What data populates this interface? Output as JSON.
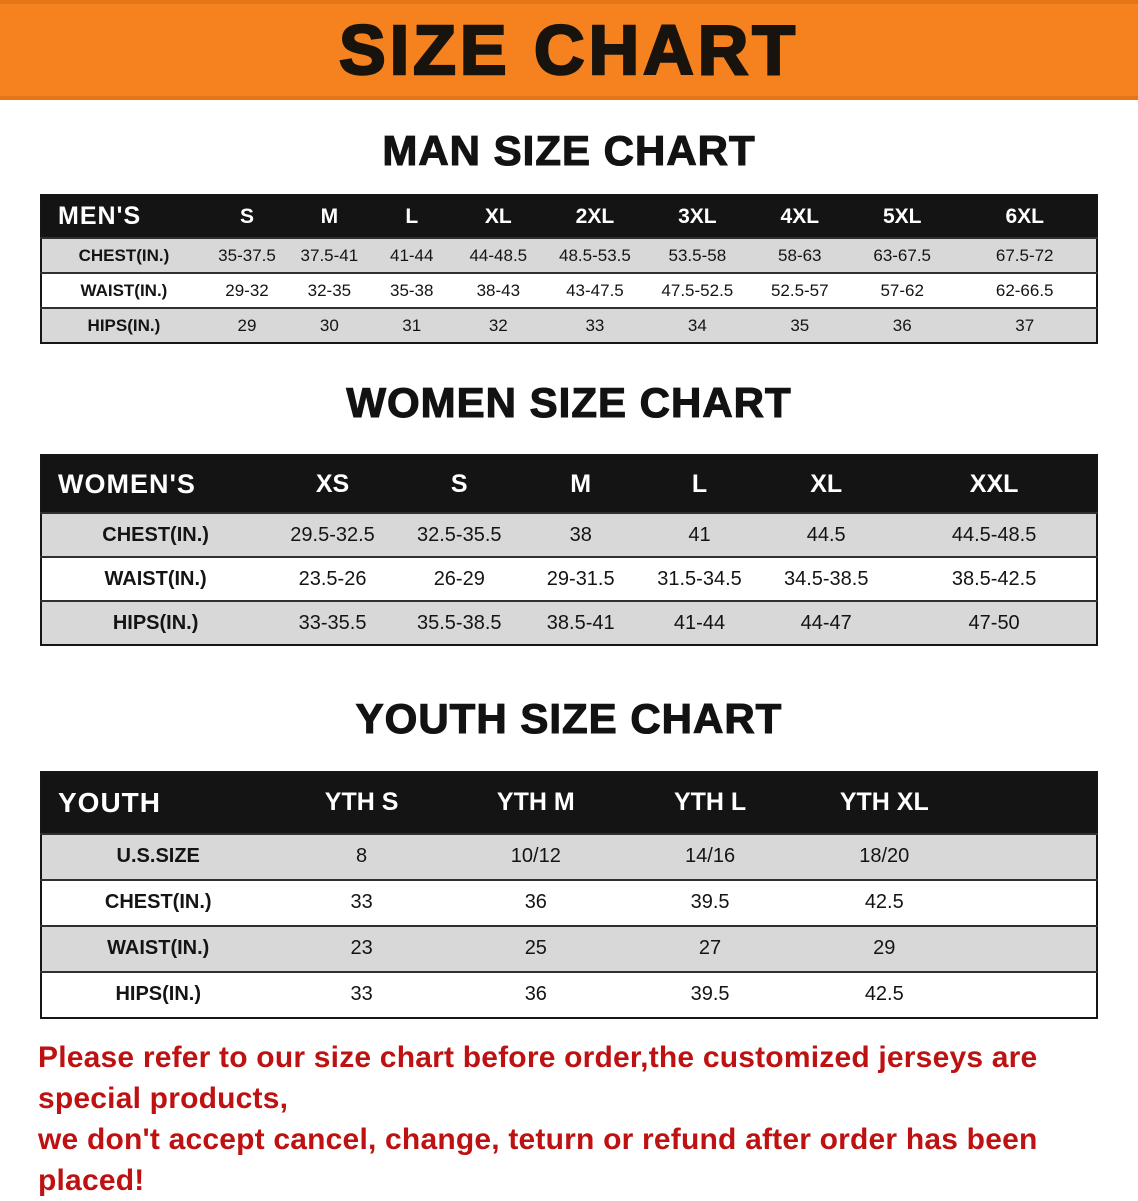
{
  "banner": {
    "title": "SIZE CHART"
  },
  "sections": [
    {
      "heading": "MAN SIZE CHART",
      "table": {
        "header": [
          "MEN'S",
          "S",
          "M",
          "L",
          "XL",
          "2XL",
          "3XL",
          "4XL",
          "5XL",
          "6XL"
        ],
        "rows": [
          {
            "label": "CHEST(IN.)",
            "values": [
              "35-37.5",
              "37.5-41",
              "41-44",
              "44-48.5",
              "48.5-53.5",
              "53.5-58",
              "58-63",
              "63-67.5",
              "67.5-72"
            ]
          },
          {
            "label": "WAIST(IN.)",
            "values": [
              "29-32",
              "32-35",
              "35-38",
              "38-43",
              "43-47.5",
              "47.5-52.5",
              "52.5-57",
              "57-62",
              "62-66.5"
            ]
          },
          {
            "label": "HIPS(IN.)",
            "values": [
              "29",
              "30",
              "31",
              "32",
              "33",
              "34",
              "35",
              "36",
              "37"
            ]
          }
        ]
      }
    },
    {
      "heading": "WOMEN SIZE CHART",
      "table": {
        "header": [
          "WOMEN'S",
          "XS",
          "S",
          "M",
          "L",
          "XL",
          "XXL"
        ],
        "rows": [
          {
            "label": "CHEST(IN.)",
            "values": [
              "29.5-32.5",
              "32.5-35.5",
              "38",
              "41",
              "44.5",
              "44.5-48.5"
            ]
          },
          {
            "label": "WAIST(IN.)",
            "values": [
              "23.5-26",
              "26-29",
              "29-31.5",
              "31.5-34.5",
              "34.5-38.5",
              "38.5-42.5"
            ]
          },
          {
            "label": "HIPS(IN.)",
            "values": [
              "33-35.5",
              "35.5-38.5",
              "38.5-41",
              "41-44",
              "44-47",
              "47-50"
            ]
          }
        ]
      }
    },
    {
      "heading": "YOUTH SIZE CHART",
      "table": {
        "header": [
          "YOUTH",
          "YTH S",
          "YTH M",
          "YTH L",
          "YTH XL"
        ],
        "rows": [
          {
            "label": "U.S.SIZE",
            "values": [
              "8",
              "10/12",
              "14/16",
              "18/20"
            ]
          },
          {
            "label": "CHEST(IN.)",
            "values": [
              "33",
              "36",
              "39.5",
              "42.5"
            ]
          },
          {
            "label": "WAIST(IN.)",
            "values": [
              "23",
              "25",
              "27",
              "29"
            ]
          },
          {
            "label": "HIPS(IN.)",
            "values": [
              "33",
              "36",
              "39.5",
              "42.5"
            ]
          }
        ]
      }
    }
  ],
  "disclaimer": {
    "line1": "Please refer to our size chart before order,the customized jerseys are special products,",
    "line2": "we don't accept cancel, change, teturn or refund after order has been placed!"
  },
  "colors": {
    "banner_bg": "#F5821E",
    "header_bg": "#141414",
    "row_alt_bg": "#D8D8D8",
    "disclaimer_red": "#BE1111"
  }
}
